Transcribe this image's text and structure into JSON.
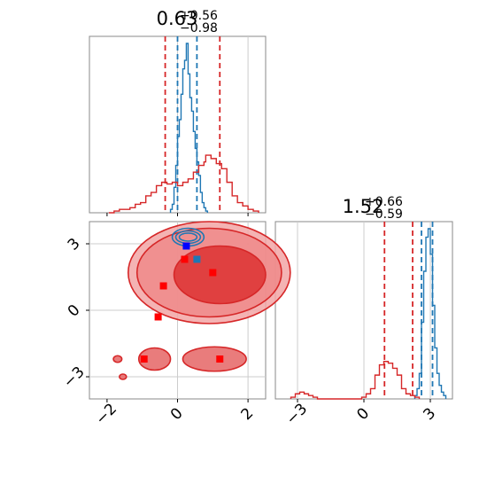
{
  "chart_data": [
    {
      "type": "histogram",
      "panel": "x",
      "xlim": [
        -2.5,
        2.5
      ],
      "title": {
        "main": "0.63",
        "sup": "+0.56",
        "sub": "−0.98"
      },
      "series": [
        {
          "color": "#1f77b4",
          "bin_edges": [
            -0.2,
            -0.15,
            -0.1,
            -0.05,
            0.0,
            0.05,
            0.1,
            0.15,
            0.2,
            0.25,
            0.3,
            0.35,
            0.4,
            0.45,
            0.5,
            0.55,
            0.6,
            0.65,
            0.7,
            0.75,
            0.8,
            0.85
          ],
          "counts": [
            0.02,
            0.05,
            0.15,
            0.28,
            0.45,
            0.55,
            0.7,
            0.85,
            0.9,
            1.0,
            0.82,
            0.68,
            0.6,
            0.48,
            0.38,
            0.3,
            0.22,
            0.12,
            0.06,
            0.03,
            0.01
          ],
          "quantile_lines": [
            -0.0,
            0.55
          ]
        },
        {
          "color": "#d62728",
          "bin_edges": [
            -1.95,
            -1.8,
            -1.65,
            -1.5,
            -1.35,
            -1.2,
            -1.05,
            -0.9,
            -0.75,
            -0.6,
            -0.45,
            -0.3,
            -0.15,
            0.0,
            0.15,
            0.3,
            0.45,
            0.6,
            0.75,
            0.8,
            0.95,
            1.1,
            1.25,
            1.4,
            1.55,
            1.7,
            1.85,
            2.0,
            2.15,
            2.3
          ],
          "counts": [
            0.0,
            0.01,
            0.02,
            0.02,
            0.03,
            0.05,
            0.06,
            0.1,
            0.12,
            0.16,
            0.18,
            0.17,
            0.18,
            0.16,
            0.18,
            0.2,
            0.24,
            0.28,
            0.3,
            0.34,
            0.32,
            0.29,
            0.26,
            0.18,
            0.1,
            0.06,
            0.04,
            0.02,
            0.01
          ],
          "quantile_lines": [
            -0.35,
            1.2
          ]
        }
      ]
    },
    {
      "type": "histogram",
      "panel": "y",
      "xlim": [
        -4.0,
        4.0
      ],
      "xticks": [
        "−3",
        "0",
        "3"
      ],
      "title": {
        "main": "1.52",
        "sup": "+0.66",
        "sub": "−0.59"
      },
      "series": [
        {
          "color": "#1f77b4",
          "bin_edges": [
            2.3,
            2.4,
            2.5,
            2.6,
            2.7,
            2.8,
            2.9,
            3.0,
            3.1,
            3.2,
            3.3,
            3.4,
            3.5,
            3.6,
            3.7
          ],
          "counts": [
            0.02,
            0.06,
            0.15,
            0.45,
            0.75,
            0.95,
            1.0,
            0.85,
            0.55,
            0.3,
            0.15,
            0.08,
            0.04,
            0.02
          ],
          "quantile_lines": [
            2.6,
            3.1
          ]
        },
        {
          "color": "#d62728",
          "bin_edges": [
            -3.3,
            -3.1,
            -2.9,
            -2.7,
            -2.5,
            -2.3,
            -2.1,
            -1.9,
            -1.7,
            -1.5,
            -1.3,
            -1.1,
            -0.9,
            -0.7,
            -0.5,
            -0.3,
            -0.1,
            0.1,
            0.3,
            0.5,
            0.7,
            0.9,
            1.1,
            1.3,
            1.5,
            1.7,
            1.9,
            2.1,
            2.3,
            2.5
          ],
          "counts": [
            0.01,
            0.03,
            0.04,
            0.03,
            0.02,
            0.01,
            0.0,
            0.0,
            0.0,
            0.0,
            0.0,
            0.0,
            0.0,
            0.0,
            0.0,
            0.0,
            0.01,
            0.03,
            0.06,
            0.14,
            0.2,
            0.22,
            0.21,
            0.18,
            0.14,
            0.06,
            0.03,
            0.02,
            0.01
          ],
          "quantile_lines": [
            0.93,
            2.2
          ]
        }
      ]
    },
    {
      "type": "scatter",
      "panel": "joint",
      "xlim": [
        -2.5,
        2.5
      ],
      "ylim": [
        -4.0,
        4.0
      ],
      "xticks": [
        "−2",
        "0",
        "2"
      ],
      "yticks": [
        "−3",
        "0",
        "3"
      ],
      "contours": {
        "red": [
          {
            "cx": 0.9,
            "cy": 1.7,
            "rx": 2.3,
            "ry": 2.3
          },
          {
            "cx": 0.9,
            "cy": 1.7,
            "rx": 2.05,
            "ry": 2.0
          },
          {
            "cx": 1.2,
            "cy": 1.6,
            "rx": 1.3,
            "ry": 1.3
          },
          {
            "cx": -0.65,
            "cy": -2.2,
            "rx": 0.45,
            "ry": 0.5
          },
          {
            "cx": 1.05,
            "cy": -2.2,
            "rx": 0.9,
            "ry": 0.55
          },
          {
            "cx": -1.7,
            "cy": -2.2,
            "rx": 0.12,
            "ry": 0.15
          },
          {
            "cx": -1.55,
            "cy": -3.0,
            "rx": 0.1,
            "ry": 0.12
          }
        ],
        "blue": [
          {
            "cx": 0.3,
            "cy": 3.3,
            "rx": 0.45,
            "ry": 0.4
          },
          {
            "cx": 0.3,
            "cy": 3.3,
            "rx": 0.35,
            "ry": 0.28
          },
          {
            "cx": 0.3,
            "cy": 3.3,
            "rx": 0.25,
            "ry": 0.18
          }
        ]
      },
      "markers": [
        {
          "x": 0.25,
          "y": 2.9,
          "color": "#0000ff"
        },
        {
          "x": 0.2,
          "y": 2.3,
          "color": "#ff0000"
        },
        {
          "x": 0.55,
          "y": 2.3,
          "color": "#1f77b4"
        },
        {
          "x": 1.0,
          "y": 1.7,
          "color": "#ff0000"
        },
        {
          "x": -0.4,
          "y": 1.1,
          "color": "#ff0000"
        },
        {
          "x": -0.55,
          "y": -0.3,
          "color": "#ff0000"
        },
        {
          "x": -0.95,
          "y": -2.2,
          "color": "#ff0000"
        },
        {
          "x": 1.2,
          "y": -2.2,
          "color": "#ff0000"
        }
      ]
    }
  ],
  "colors": {
    "posterior_a": "#1f77b4",
    "posterior_b": "#d62728",
    "grid": "#cccccc",
    "axis": "#888888"
  }
}
